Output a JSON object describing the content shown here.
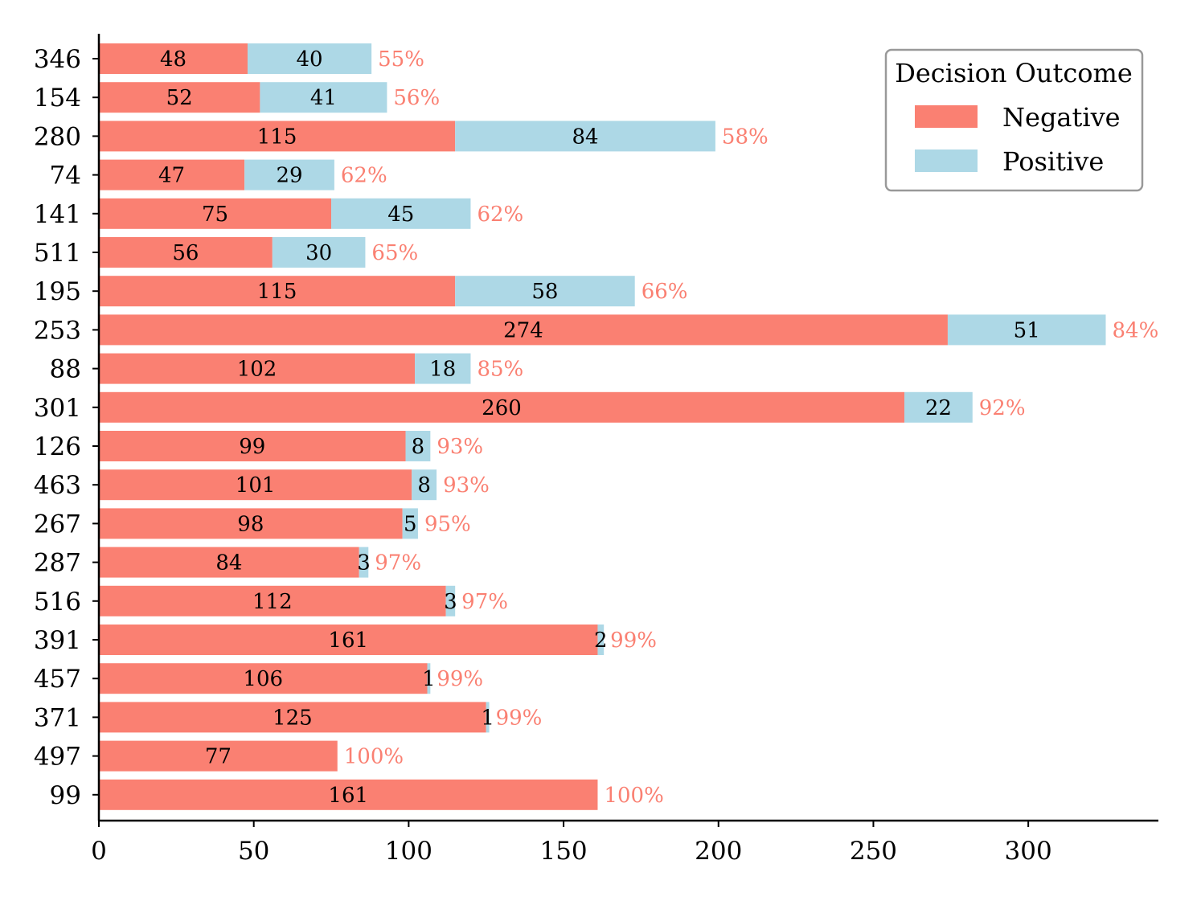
{
  "chart_data": {
    "type": "bar",
    "orientation": "horizontal",
    "stacked": true,
    "categories": [
      "346",
      "154",
      "280",
      "74",
      "141",
      "511",
      "195",
      "253",
      "88",
      "301",
      "126",
      "463",
      "267",
      "287",
      "516",
      "391",
      "457",
      "371",
      "497",
      "99"
    ],
    "series": [
      {
        "name": "Negative",
        "color": "#FA8072",
        "values": [
          48,
          52,
          115,
          47,
          75,
          56,
          115,
          274,
          102,
          260,
          99,
          101,
          98,
          84,
          112,
          161,
          106,
          125,
          77,
          161
        ]
      },
      {
        "name": "Positive",
        "color": "#ADD8E6",
        "values": [
          40,
          41,
          84,
          29,
          45,
          30,
          58,
          51,
          18,
          22,
          8,
          8,
          5,
          3,
          3,
          2,
          1,
          1,
          0,
          0
        ]
      }
    ],
    "percent_labels": [
      "55%",
      "56%",
      "58%",
      "62%",
      "62%",
      "65%",
      "66%",
      "84%",
      "85%",
      "92%",
      "93%",
      "93%",
      "95%",
      "97%",
      "97%",
      "99%",
      "99%",
      "99%",
      "100%",
      "100%"
    ],
    "percent_label_color": "#FA8072",
    "xlim": [
      0,
      342
    ],
    "xticks": [
      0,
      50,
      100,
      150,
      200,
      250,
      300
    ],
    "xlabel": "",
    "ylabel": "",
    "title": "",
    "legend": {
      "title": "Decision Outcome",
      "placement": "top-right",
      "entries": [
        "Negative",
        "Positive"
      ]
    },
    "grid": false
  }
}
